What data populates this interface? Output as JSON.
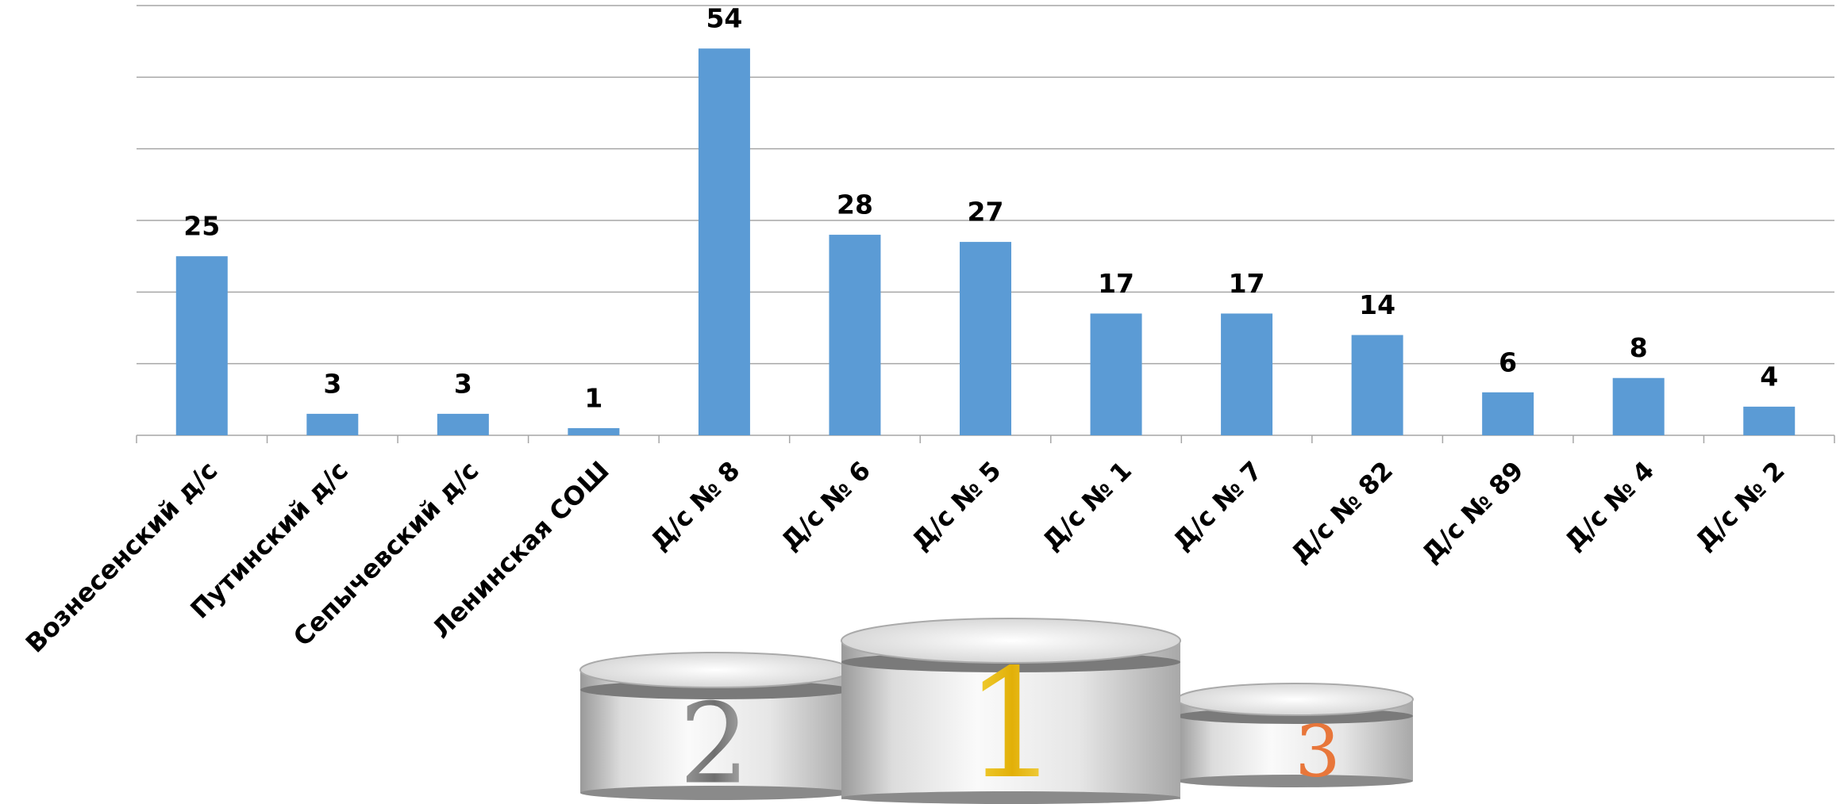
{
  "chart_data": {
    "type": "bar",
    "categories": [
      "Вознесенский д/с",
      "Путинский д/с",
      "Сепычевский д/с",
      "Ленинская СОШ",
      "Д/с № 8",
      "Д/с № 6",
      "Д/с № 5",
      "Д/с № 1",
      "Д/с № 7",
      "Д/с № 82",
      "Д/с № 89",
      "Д/с № 4",
      "Д/с № 2"
    ],
    "values": [
      25,
      3,
      3,
      1,
      54,
      28,
      27,
      17,
      17,
      14,
      6,
      8,
      4
    ],
    "color": "#5b9bd5",
    "ylim": [
      0,
      60
    ],
    "yticks": [
      0,
      10,
      20,
      30,
      40,
      50,
      60
    ],
    "grid": true
  },
  "podium": {
    "first": "1",
    "second": "2",
    "third": "3"
  }
}
